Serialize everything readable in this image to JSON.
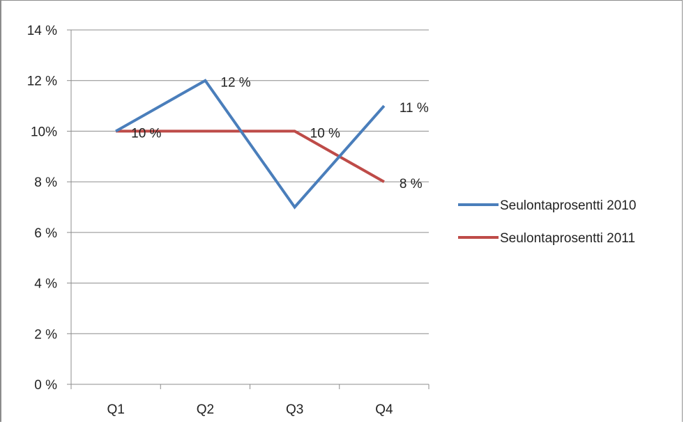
{
  "chart_data": {
    "type": "line",
    "categories": [
      "Q1",
      "Q2",
      "Q3",
      "Q4"
    ],
    "series": [
      {
        "name": "Seulontaprosentti 2010",
        "values": [
          10,
          12,
          7,
          11
        ],
        "data_labels": [
          "",
          "12 %",
          "",
          "11 %"
        ],
        "color": "#4a7ebb"
      },
      {
        "name": "Seulontaprosentti 2011",
        "values": [
          10,
          10,
          10,
          8
        ],
        "data_labels": [
          "10 %",
          "",
          "10 %",
          "8 %"
        ],
        "color": "#be4b48"
      }
    ],
    "y_ticks": [
      "0 %",
      "2 %",
      "4 %",
      "6 %",
      "8 %",
      "10%",
      "12 %",
      "14 %"
    ],
    "ylim": [
      0,
      14
    ],
    "y_step": 2,
    "grid": true,
    "legend_position": "right"
  }
}
